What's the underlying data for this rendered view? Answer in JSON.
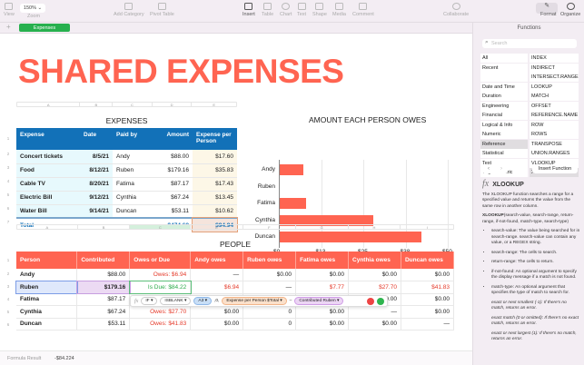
{
  "toolbar": {
    "view": "View",
    "zoom": "Zoom",
    "zoom_value": "150% ⌄",
    "add_category": "Add Category",
    "pivot_table": "Pivot Table",
    "insert": "Insert",
    "table": "Table",
    "chart": "Chart",
    "text": "Text",
    "shape": "Shape",
    "media": "Media",
    "comment": "Comment",
    "collaborate": "Collaborate",
    "format": "Format",
    "organize": "Organize"
  },
  "sheets": {
    "add": "+",
    "tabs": [
      {
        "label": "Expenses"
      }
    ]
  },
  "doc_title": "SHARED EXPENSES",
  "expenses": {
    "title": "EXPENSES",
    "col_letters": [
      "A",
      "B",
      "C",
      "D",
      "E"
    ],
    "headers": [
      "Expense",
      "Date",
      "Paid by",
      "Amount",
      "Expense per Person"
    ],
    "rows": [
      [
        "Concert tickets",
        "8/5/21",
        "Andy",
        "$88.00",
        "$17.60"
      ],
      [
        "Food",
        "8/12/21",
        "Ruben",
        "$179.16",
        "$35.83"
      ],
      [
        "Cable TV",
        "8/20/21",
        "Fatima",
        "$87.17",
        "$17.43"
      ],
      [
        "Electric Bill",
        "9/12/21",
        "Cynthia",
        "$67.24",
        "$13.45"
      ],
      [
        "Water Bill",
        "9/14/21",
        "Duncan",
        "$53.11",
        "$10.62"
      ]
    ],
    "total": [
      "Total",
      "",
      "",
      "$474.68",
      "$94.94"
    ]
  },
  "chart_data": {
    "type": "bar",
    "orientation": "horizontal",
    "title": "AMOUNT EACH PERSON OWES",
    "categories": [
      "Andy",
      "Ruben",
      "Fatima",
      "Cynthia",
      "Duncan"
    ],
    "values": [
      6.94,
      0,
      7.77,
      27.7,
      41.83
    ],
    "xlim": [
      0,
      50
    ],
    "xticks": [
      "$0",
      "$13",
      "$25",
      "$38",
      "$50"
    ],
    "xlabel": "",
    "ylabel": "",
    "grid": true
  },
  "people": {
    "title": "PEOPLE",
    "col_letters": [
      "A",
      "B",
      "C",
      "E",
      "F",
      "G",
      "H",
      "I"
    ],
    "headers": [
      "Person",
      "Contributed",
      "Owes or Due",
      "Andy owes",
      "Ruben owes",
      "Fatima owes",
      "Cynthia owes",
      "Duncan owes"
    ],
    "rows": [
      [
        "Andy",
        "$88.00",
        "Owes: $6.94",
        "—",
        "$0.00",
        "$0.00",
        "$0.00",
        "$0.00"
      ],
      [
        "Ruben",
        "$179.16",
        "Is Due: $84.22",
        "$6.94",
        "—",
        "$7.77",
        "$27.70",
        "$41.83"
      ],
      [
        "Fatima",
        "$87.17",
        "",
        "",
        "",
        "",
        "$0.00",
        "$0.00"
      ],
      [
        "Cynthia",
        "$67.24",
        "Owes: $27.70",
        "$0.00",
        "0",
        "$0.00",
        "—",
        "$0.00"
      ],
      [
        "Duncan",
        "$53.11",
        "Owes: $41.83",
        "$0.00",
        "0",
        "$0.00",
        "$0.00",
        "—"
      ]
    ]
  },
  "formula": {
    "fx": "fx",
    "fn": "IF ▾",
    "isblank": "ISBLANK ▾",
    "ref": "A3 ▾",
    "zero": ",0,",
    "expense_ref": "Expense per Person $Total ▾",
    "minus": "–",
    "contrib_ref": "Contributed Ruben ▾"
  },
  "sidebar": {
    "title": "Functions",
    "search_placeholder": "Search",
    "categories": [
      "All",
      "Recent",
      "",
      "Date and Time",
      "Duration",
      "Engineering",
      "Financial",
      "Logical & Info",
      "Numeric",
      "Reference",
      "Statistical",
      "Text",
      "Trigonometric"
    ],
    "functions": [
      "INDEX",
      "INDIRECT",
      "INTERSECT.RANGES",
      "LOOKUP",
      "MATCH",
      "OFFSET",
      "REFERENCE.NAME",
      "ROW",
      "ROWS",
      "TRANSPOSE",
      "UNION.RANGES",
      "VLOOKUP",
      "XLOOKUP"
    ],
    "insert_function": "Insert Function",
    "fn_name": "XLOOKUP",
    "fn_desc": "The XLOOKUP function searches a range for a specified value and returns the value from the same row in another column.",
    "syntax_name": "XLOOKUP",
    "syntax_args": "(search-value, search-range, return-range, if-not-found, match-type, search-type)",
    "args": [
      "search-value: The value being searched for in search-range. search-value can contain any value, or a REGEX string.",
      "search-range: The cells to search.",
      "return-range: The cells to return.",
      "if-not-found: An optional argument to specify the display message if a match is not found.",
      "match-type: An optional argument that specifies the type of match to search for."
    ],
    "match_opts": [
      "exact or next smallest (-1): If there's no match, returns an error.",
      "exact match (0 or omitted): If there's no exact match, returns an error.",
      "exact or next largest (1): If there's no match, returns an error."
    ]
  },
  "status": {
    "label": "Formula Result",
    "value": "-$84.224"
  }
}
